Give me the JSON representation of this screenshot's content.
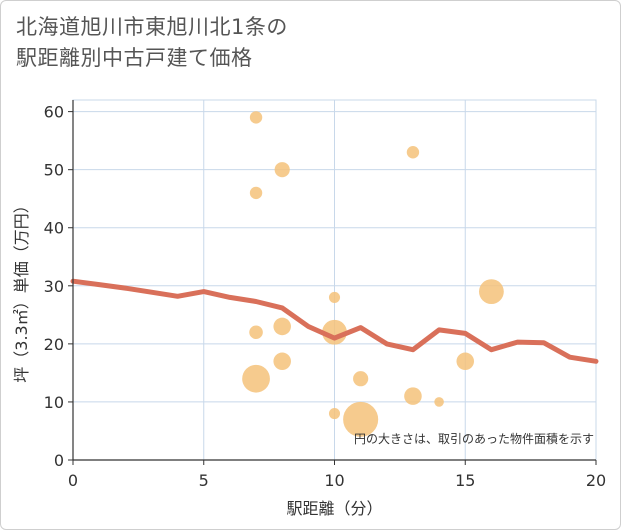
{
  "title_lines": [
    "北海道旭川市東旭川北1条の",
    "駅距離別中古戸建て価格"
  ],
  "chart_data": {
    "type": "scatter",
    "title": "北海道旭川市東旭川北1条の駅距離別中古戸建て価格",
    "xlabel": "駅距離（分）",
    "ylabel": "坪（3.3㎡）単価（万円）",
    "xlim": [
      0,
      20
    ],
    "ylim": [
      0,
      62
    ],
    "xticks": [
      0,
      5,
      10,
      15,
      20
    ],
    "yticks": [
      0,
      10,
      20,
      30,
      40,
      50,
      60
    ],
    "grid": true,
    "note": "円の大きさは、取引のあった物件面積を示す",
    "colors": {
      "bubble": "#f5c27a",
      "line": "#d9705a",
      "grid": "#c8d8ea"
    },
    "points": [
      {
        "x": 7,
        "y": 59,
        "size": 1
      },
      {
        "x": 7,
        "y": 46,
        "size": 1
      },
      {
        "x": 8,
        "y": 50,
        "size": 1.5
      },
      {
        "x": 13,
        "y": 53,
        "size": 1
      },
      {
        "x": 10,
        "y": 28,
        "size": 0.8
      },
      {
        "x": 16,
        "y": 29,
        "size": 4
      },
      {
        "x": 7,
        "y": 22,
        "size": 1.2
      },
      {
        "x": 8,
        "y": 23,
        "size": 2
      },
      {
        "x": 10,
        "y": 22,
        "size": 4
      },
      {
        "x": 8,
        "y": 17,
        "size": 2
      },
      {
        "x": 15,
        "y": 17,
        "size": 2
      },
      {
        "x": 7,
        "y": 14,
        "size": 5
      },
      {
        "x": 11,
        "y": 14,
        "size": 1.5
      },
      {
        "x": 13,
        "y": 11,
        "size": 2
      },
      {
        "x": 14,
        "y": 10,
        "size": 0.6
      },
      {
        "x": 10,
        "y": 8,
        "size": 0.8
      },
      {
        "x": 11,
        "y": 7,
        "size": 8
      }
    ],
    "trend": {
      "x": [
        0,
        1,
        2,
        3,
        4,
        5,
        6,
        7,
        8,
        9,
        10,
        11,
        12,
        13,
        14,
        15,
        16,
        17,
        18,
        19,
        20
      ],
      "y": [
        30.8,
        30.2,
        29.6,
        28.9,
        28.2,
        29.0,
        28.0,
        27.3,
        26.2,
        23.0,
        21.0,
        22.8,
        20.0,
        19.0,
        22.4,
        21.8,
        19.0,
        20.3,
        20.2,
        17.7,
        17.0
      ]
    }
  }
}
